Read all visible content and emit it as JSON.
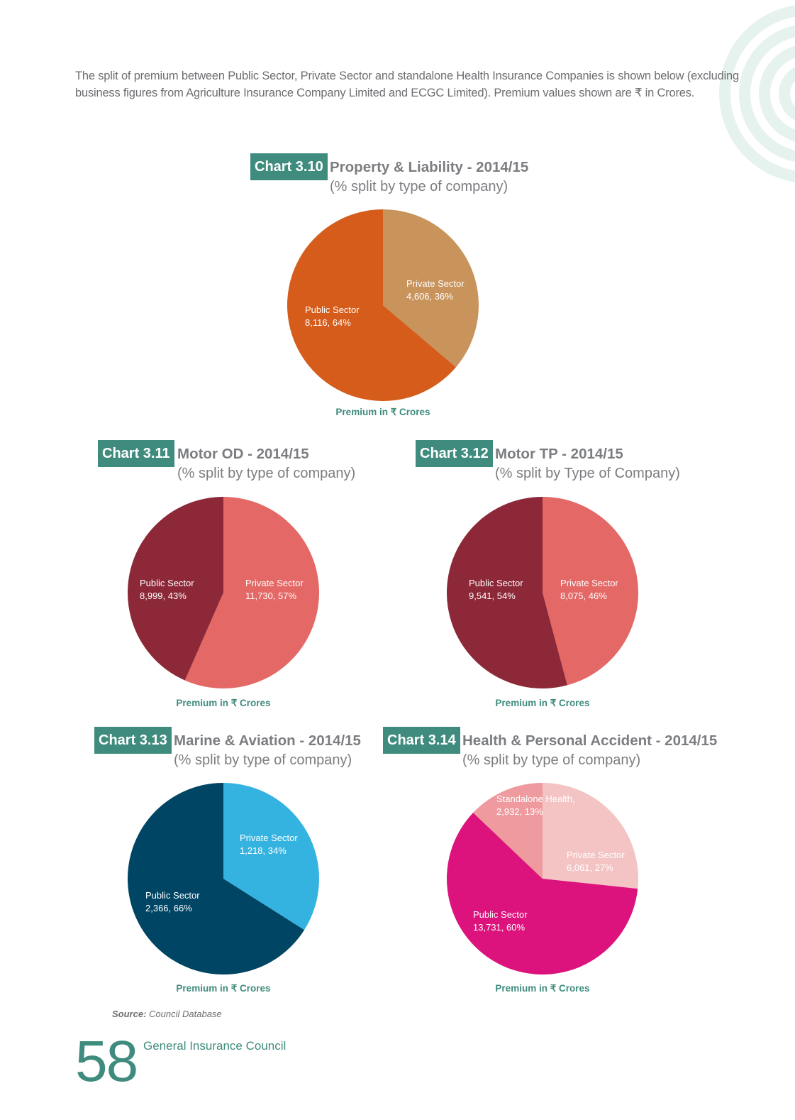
{
  "intro": {
    "line1": "The split of premium between Public Sector, Private Sector and standalone Health Insurance Companies is shown below (excluding",
    "line2": "business figures from Agriculture Insurance Company Limited and ECGC Limited). Premium values shown are ₹ in Crores."
  },
  "source": {
    "label": "Source:",
    "text": "Council Database"
  },
  "footer": {
    "page_number": "58",
    "publisher": "General Insurance Council"
  },
  "colors": {
    "accent": "#3f8c7e",
    "title_gray": "#7b7d80"
  },
  "chart_data": [
    {
      "type": "pie",
      "badge": "Chart 3.10",
      "title": "Property & Liability - 2014/15",
      "subtitle": "(% split by type of company)",
      "caption": "Premium in ₹ Crores",
      "slices": [
        {
          "name": "Private Sector",
          "value": 4606,
          "percent": 36,
          "value_label": "4,606, 36%",
          "color": "#c9945c"
        },
        {
          "name": "Public Sector",
          "value": 8116,
          "percent": 64,
          "value_label": "8,116, 64%",
          "color": "#d55c1b"
        }
      ]
    },
    {
      "type": "pie",
      "badge": "Chart 3.11",
      "title": "Motor OD - 2014/15",
      "subtitle": "(% split by type of company)",
      "caption": "Premium in ₹ Crores",
      "slices": [
        {
          "name": "Private Sector",
          "value": 11730,
          "percent": 57,
          "value_label": "11,730, 57%",
          "color": "#e36866"
        },
        {
          "name": "Public Sector",
          "value": 8999,
          "percent": 43,
          "value_label": "8,999, 43%",
          "color": "#8c2838"
        }
      ]
    },
    {
      "type": "pie",
      "badge": "Chart 3.12",
      "title": "Motor TP - 2014/15",
      "subtitle": "(% split by Type of Company)",
      "caption": "Premium in ₹ Crores",
      "slices": [
        {
          "name": "Private Sector",
          "value": 8075,
          "percent": 46,
          "value_label": "8,075, 46%",
          "color": "#e36866"
        },
        {
          "name": "Public Sector",
          "value": 9541,
          "percent": 54,
          "value_label": "9,541, 54%",
          "color": "#8c2838"
        }
      ]
    },
    {
      "type": "pie",
      "badge": "Chart 3.13",
      "title": "Marine & Aviation - 2014/15",
      "subtitle": "(% split by type of company)",
      "caption": "Premium in ₹ Crores",
      "slices": [
        {
          "name": "Private Sector",
          "value": 1218,
          "percent": 34,
          "value_label": "1,218, 34%",
          "color": "#35b3e0"
        },
        {
          "name": "Public Sector",
          "value": 2366,
          "percent": 66,
          "value_label": "2,366, 66%",
          "color": "#004563"
        }
      ]
    },
    {
      "type": "pie",
      "badge": "Chart 3.14",
      "title": "Health & Personal Accident - 2014/15",
      "subtitle": "(% split by type of company)",
      "caption": "Premium in ₹ Crores",
      "slices": [
        {
          "name": "Private Sector",
          "value": 6061,
          "percent": 27,
          "value_label": "6,061, 27%",
          "color": "#f4c4c4"
        },
        {
          "name": "Public Sector",
          "value": 13731,
          "percent": 60,
          "value_label": "13,731, 60%",
          "color": "#dc137c"
        },
        {
          "name": "Standalone Health,",
          "value": 2932,
          "percent": 13,
          "value_label": "2,932, 13%",
          "color": "#ee9a9e"
        }
      ]
    }
  ]
}
